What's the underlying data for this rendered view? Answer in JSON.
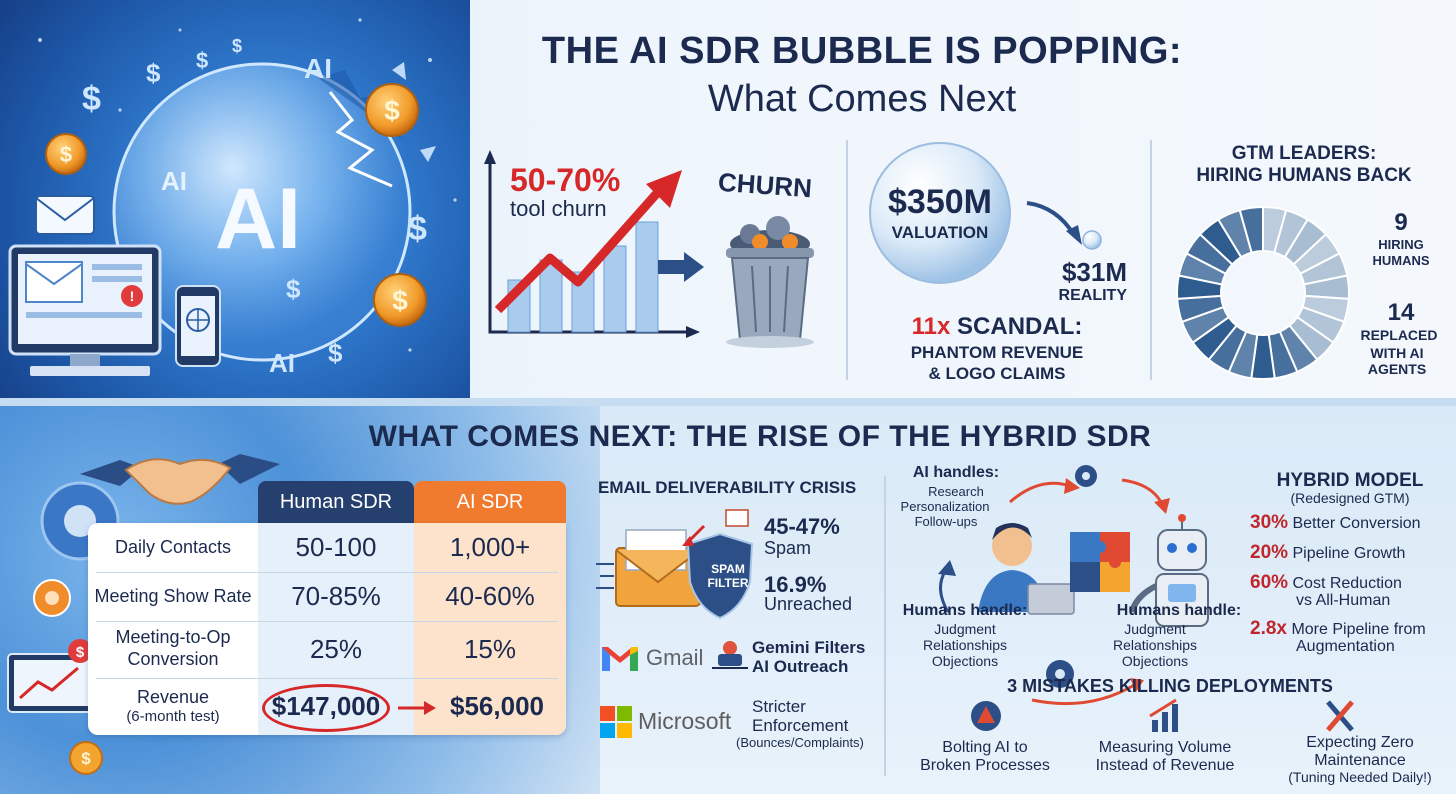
{
  "header": {
    "title": "THE AI SDR BUBBLE IS POPPING:",
    "subtitle": "What Comes Next"
  },
  "hero": {
    "bubble_text": "AI",
    "bubble_text_small": "AI",
    "floating_labels": [
      "AI",
      "AI"
    ]
  },
  "churn_panel": {
    "stat": "50-70%",
    "stat_label": "tool churn",
    "bin_label": "CHURN"
  },
  "valuation_panel": {
    "valuation_amount": "$350M",
    "valuation_label": "VALUATION",
    "reality_amount": "$31M",
    "reality_label": "REALITY",
    "scandal_multiplier": "11x",
    "scandal_title": "SCANDAL:",
    "scandal_line1": "PHANTOM REVENUE",
    "scandal_line2": "& LOGO CLAIMS"
  },
  "gtm_panel": {
    "title_line1": "GTM LEADERS:",
    "title_line2": "HIRING HUMANS BACK",
    "hiring_count": "9",
    "hiring_label_1": "HIRING",
    "hiring_label_2": "HUMANS",
    "replaced_count": "14",
    "replaced_label_1": "REPLACED",
    "replaced_label_2": "WITH AI AGENTS"
  },
  "chart_data": {
    "type": "pie",
    "categories": [
      "HIRING HUMANS",
      "REPLACED WITH AI AGENTS"
    ],
    "values": [
      9,
      14
    ],
    "colors": [
      "#a9bdd2",
      "#2e5c8f"
    ]
  },
  "next_section": {
    "title": "WHAT COMES NEXT: THE RISE OF THE HYBRID SDR"
  },
  "comparison_table": {
    "col_human": "Human SDR",
    "col_ai": "AI SDR",
    "rows": [
      {
        "label": "Daily Contacts",
        "label2": "",
        "human": "50-100",
        "ai": "1,000+"
      },
      {
        "label": "Meeting Show Rate",
        "label2": "",
        "human": "70-85%",
        "ai": "40-60%"
      },
      {
        "label": "Meeting-to-Op",
        "label2": "Conversion",
        "human": "25%",
        "ai": "15%"
      },
      {
        "label": "Revenue",
        "label2": "(6-month test)",
        "human": "$147,000",
        "ai": "$56,000"
      }
    ]
  },
  "email_panel": {
    "title": "EMAIL DELIVERABILITY CRISIS",
    "spam_filter_1": "SPAM",
    "spam_filter_2": "FILTER",
    "spam_pct": "45-47%",
    "spam_label": "Spam",
    "unreached_pct": "16.9%",
    "unreached_label": "Unreached",
    "gmail_label": "Gmail",
    "gemini_line1": "Gemini Filters",
    "gemini_line2": "AI Outreach",
    "microsoft_label": "Microsoft",
    "ms_line1": "Stricter",
    "ms_line2": "Enforcement",
    "ms_line3": "(Bounces/Complaints)"
  },
  "hybrid_diagram": {
    "ai_handles_title": "AI handles:",
    "ai_handles_items": [
      "Research",
      "Personalization",
      "Follow-ups"
    ],
    "humans_left_title": "Humans handle:",
    "humans_left_items": [
      "Judgment",
      "Relationships",
      "Objections"
    ],
    "humans_right_title": "Humans handle:",
    "humans_right_items": [
      "Judgment",
      "Relationships",
      "Objections"
    ]
  },
  "hybrid_model": {
    "title": "HYBRID MODEL",
    "subtitle": "(Redesigned GTM)",
    "stats": [
      {
        "pct": "30%",
        "text": "Better Conversion",
        "text2": ""
      },
      {
        "pct": "20%",
        "text": "Pipeline Growth",
        "text2": ""
      },
      {
        "pct": "60%",
        "text": "Cost Reduction",
        "text2": "vs All-Human"
      },
      {
        "pct": "2.8x",
        "text": "More Pipeline from",
        "text2": "Augmentation"
      }
    ]
  },
  "mistakes": {
    "title": "3 MISTAKES KILLING DEPLOYMENTS",
    "items": [
      {
        "line1": "Bolting AI to",
        "line2": "Broken Processes",
        "line3": ""
      },
      {
        "line1": "Measuring Volume",
        "line2": "Instead of Revenue",
        "line3": ""
      },
      {
        "line1": "Expecting Zero",
        "line2": "Maintenance",
        "line3": "(Tuning Needed Daily!)"
      }
    ]
  },
  "colors": {
    "navy": "#1b2a4e",
    "red": "#d62828",
    "human_header": "#25406f",
    "ai_header": "#f07a2e",
    "ai_column": "#fde3cc"
  }
}
